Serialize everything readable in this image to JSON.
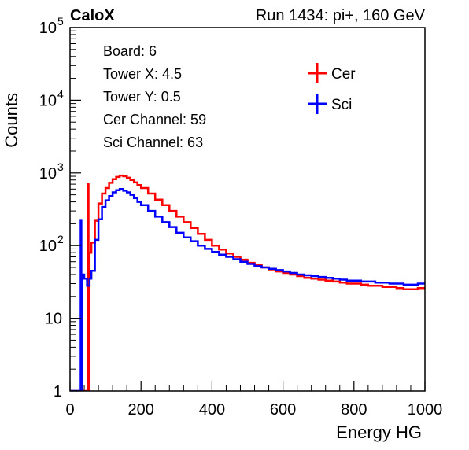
{
  "chart_data": {
    "type": "line",
    "title_left": "CaloX",
    "title_right": "Run 1434: pi+, 160 GeV",
    "xlabel": "Energy HG",
    "ylabel": "Counts",
    "xlim": [
      0,
      1000
    ],
    "ylim": [
      1,
      100000
    ],
    "y_scale": "log",
    "grid": false,
    "x_ticks": [
      {
        "value": 0,
        "label": "0"
      },
      {
        "value": 200,
        "label": "200"
      },
      {
        "value": 400,
        "label": "400"
      },
      {
        "value": 600,
        "label": "600"
      },
      {
        "value": 800,
        "label": "800"
      },
      {
        "value": 1000,
        "label": "1000"
      }
    ],
    "y_ticks": [
      {
        "value": 1,
        "base": "1",
        "exp": ""
      },
      {
        "value": 10,
        "base": "10",
        "exp": ""
      },
      {
        "value": 100,
        "base": "10",
        "exp": "2"
      },
      {
        "value": 1000,
        "base": "10",
        "exp": "3"
      },
      {
        "value": 10000,
        "base": "10",
        "exp": "4"
      },
      {
        "value": 100000,
        "base": "10",
        "exp": "5"
      }
    ],
    "info_lines": [
      "Board: 6",
      "Tower X: 4.5",
      "Tower Y: 0.5",
      "Cer Channel: 59",
      "Sci Channel: 63"
    ],
    "legend_position": "top-right",
    "series": [
      {
        "name": "Cer",
        "color": "#ff0000",
        "points": [
          [
            0,
            1
          ],
          [
            40,
            1
          ],
          [
            48,
            1
          ],
          [
            50,
            700
          ],
          [
            52,
            1
          ],
          [
            55,
            80
          ],
          [
            60,
            110
          ],
          [
            70,
            220
          ],
          [
            80,
            380
          ],
          [
            90,
            520
          ],
          [
            100,
            620
          ],
          [
            110,
            730
          ],
          [
            120,
            820
          ],
          [
            130,
            880
          ],
          [
            140,
            920
          ],
          [
            150,
            900
          ],
          [
            160,
            860
          ],
          [
            170,
            800
          ],
          [
            180,
            740
          ],
          [
            190,
            680
          ],
          [
            200,
            620
          ],
          [
            220,
            520
          ],
          [
            240,
            430
          ],
          [
            260,
            360
          ],
          [
            280,
            300
          ],
          [
            300,
            250
          ],
          [
            320,
            210
          ],
          [
            340,
            175
          ],
          [
            360,
            145
          ],
          [
            380,
            120
          ],
          [
            400,
            100
          ],
          [
            420,
            88
          ],
          [
            440,
            78
          ],
          [
            460,
            70
          ],
          [
            480,
            64
          ],
          [
            500,
            58
          ],
          [
            520,
            54
          ],
          [
            540,
            50
          ],
          [
            560,
            47
          ],
          [
            580,
            44
          ],
          [
            600,
            42
          ],
          [
            620,
            40
          ],
          [
            640,
            38
          ],
          [
            660,
            36
          ],
          [
            680,
            35
          ],
          [
            700,
            34
          ],
          [
            720,
            33
          ],
          [
            740,
            32
          ],
          [
            760,
            31
          ],
          [
            780,
            30
          ],
          [
            800,
            30
          ],
          [
            820,
            29
          ],
          [
            840,
            28
          ],
          [
            860,
            28
          ],
          [
            880,
            27
          ],
          [
            900,
            27
          ],
          [
            920,
            26
          ],
          [
            940,
            25
          ],
          [
            960,
            25
          ],
          [
            980,
            26
          ],
          [
            1000,
            27
          ]
        ]
      },
      {
        "name": "Sci",
        "color": "#0000ff",
        "points": [
          [
            0,
            1
          ],
          [
            28,
            1
          ],
          [
            30,
            220
          ],
          [
            32,
            1
          ],
          [
            34,
            40
          ],
          [
            40,
            35
          ],
          [
            48,
            28
          ],
          [
            55,
            35
          ],
          [
            60,
            45
          ],
          [
            70,
            120
          ],
          [
            80,
            230
          ],
          [
            90,
            340
          ],
          [
            100,
            420
          ],
          [
            110,
            480
          ],
          [
            120,
            540
          ],
          [
            130,
            580
          ],
          [
            140,
            600
          ],
          [
            150,
            570
          ],
          [
            160,
            540
          ],
          [
            170,
            500
          ],
          [
            180,
            450
          ],
          [
            190,
            400
          ],
          [
            200,
            360
          ],
          [
            220,
            300
          ],
          [
            240,
            250
          ],
          [
            260,
            210
          ],
          [
            280,
            180
          ],
          [
            300,
            150
          ],
          [
            320,
            130
          ],
          [
            340,
            115
          ],
          [
            360,
            100
          ],
          [
            380,
            90
          ],
          [
            400,
            82
          ],
          [
            420,
            75
          ],
          [
            440,
            70
          ],
          [
            460,
            65
          ],
          [
            480,
            60
          ],
          [
            500,
            56
          ],
          [
            520,
            52
          ],
          [
            540,
            50
          ],
          [
            560,
            48
          ],
          [
            580,
            46
          ],
          [
            600,
            44
          ],
          [
            620,
            42
          ],
          [
            640,
            40
          ],
          [
            660,
            39
          ],
          [
            680,
            38
          ],
          [
            700,
            37
          ],
          [
            720,
            36
          ],
          [
            740,
            35
          ],
          [
            760,
            34
          ],
          [
            780,
            33
          ],
          [
            800,
            33
          ],
          [
            820,
            32
          ],
          [
            840,
            32
          ],
          [
            860,
            31
          ],
          [
            880,
            31
          ],
          [
            900,
            30
          ],
          [
            920,
            30
          ],
          [
            940,
            29
          ],
          [
            960,
            29
          ],
          [
            980,
            30
          ],
          [
            1000,
            30
          ]
        ]
      }
    ]
  }
}
